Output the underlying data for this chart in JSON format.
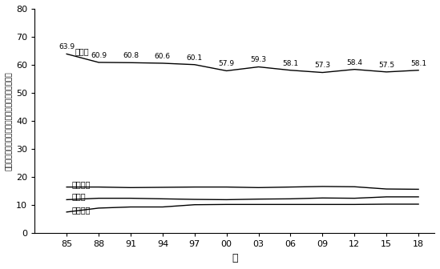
{
  "years": [
    1985,
    1988,
    1991,
    1994,
    1997,
    2000,
    2003,
    2006,
    2009,
    2012,
    2015,
    2018
  ],
  "middle": [
    63.9,
    60.9,
    60.8,
    60.6,
    60.1,
    57.9,
    59.3,
    58.1,
    57.3,
    58.4,
    57.5,
    58.1
  ],
  "low_income": [
    16.5,
    16.5,
    16.3,
    16.4,
    16.5,
    16.5,
    16.3,
    16.5,
    16.7,
    16.6,
    15.8,
    15.7
  ],
  "poverty": [
    12.0,
    12.5,
    12.5,
    12.3,
    12.1,
    12.0,
    12.2,
    12.3,
    12.6,
    12.5,
    13.0,
    13.0
  ],
  "high_income": [
    7.6,
    9.0,
    9.4,
    9.4,
    10.2,
    10.3,
    10.3,
    10.3,
    10.3,
    10.3,
    10.4,
    10.4
  ],
  "xtick_labels": [
    "85",
    "88",
    "91",
    "94",
    "97",
    "00",
    "03",
    "06",
    "09",
    "12",
    "15",
    "18"
  ],
  "ytick_values": [
    0,
    10,
    20,
    30,
    40,
    50,
    60,
    70,
    80
  ],
  "ylabel": "貧困層、低所得層、中間層、高所得層の割合（％）",
  "xlabel": "年",
  "label_middle": "中間層",
  "label_low": "低所得層",
  "label_poverty": "貧困層",
  "label_high": "高所得層",
  "line_color": "#000000",
  "bg_color": "#ffffff",
  "ylim": [
    0,
    80
  ],
  "xlim": [
    1982.0,
    2019.5
  ]
}
